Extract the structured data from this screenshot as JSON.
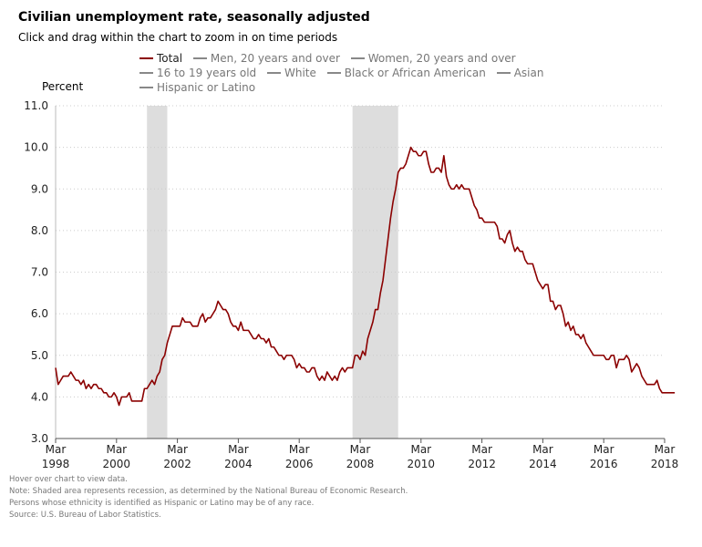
{
  "header": {
    "title": "Civilian unemployment rate, seasonally adjusted",
    "subtitle": "Click and drag within the chart to zoom in on time periods"
  },
  "legend": [
    {
      "label": "Total",
      "active": true
    },
    {
      "label": "Men, 20 years and over",
      "active": false
    },
    {
      "label": "Women, 20 years and over",
      "active": false
    },
    {
      "label": "16 to 19 years old",
      "active": false
    },
    {
      "label": "White",
      "active": false
    },
    {
      "label": "Black or African American",
      "active": false
    },
    {
      "label": "Asian",
      "active": false
    },
    {
      "label": "Hispanic or Latino",
      "active": false
    }
  ],
  "notes": [
    "Hover over chart to view data.",
    "Note: Shaded area represents recession, as determined by the National Bureau of Economic Research.",
    "Persons whose ethnicity is identified as Hispanic or Latino may be of any race.",
    "Source: U.S. Bureau of Labor Statistics."
  ],
  "colors": {
    "line": "#8b0000",
    "recession": "#dddddd",
    "grid": "#cccccc"
  },
  "chart_data": {
    "type": "line",
    "title": "Civilian unemployment rate, seasonally adjusted",
    "ylabel": "Percent",
    "ylim": [
      3.0,
      11.0
    ],
    "y_ticks": [
      "3.0",
      "4.0",
      "5.0",
      "6.0",
      "7.0",
      "8.0",
      "9.0",
      "10.0",
      "11.0"
    ],
    "xlim": [
      "1998-03",
      "2018-03"
    ],
    "x_ticks": [
      {
        "month": "Mar",
        "year": "1998"
      },
      {
        "month": "Mar",
        "year": "2000"
      },
      {
        "month": "Mar",
        "year": "2002"
      },
      {
        "month": "Mar",
        "year": "2004"
      },
      {
        "month": "Mar",
        "year": "2006"
      },
      {
        "month": "Mar",
        "year": "2008"
      },
      {
        "month": "Mar",
        "year": "2010"
      },
      {
        "month": "Mar",
        "year": "2012"
      },
      {
        "month": "Mar",
        "year": "2014"
      },
      {
        "month": "Mar",
        "year": "2016"
      },
      {
        "month": "Mar",
        "year": "2018"
      }
    ],
    "grid": true,
    "legend_position": "top",
    "recessions": [
      {
        "start": "2001-03",
        "end": "2001-11"
      },
      {
        "start": "2007-12",
        "end": "2009-06"
      }
    ],
    "series": [
      {
        "name": "Total",
        "start": "1998-03",
        "values": [
          4.7,
          4.3,
          4.4,
          4.5,
          4.5,
          4.5,
          4.6,
          4.5,
          4.4,
          4.4,
          4.3,
          4.4,
          4.2,
          4.3,
          4.2,
          4.3,
          4.3,
          4.2,
          4.2,
          4.1,
          4.1,
          4.0,
          4.0,
          4.1,
          4.0,
          3.8,
          4.0,
          4.0,
          4.0,
          4.1,
          3.9,
          3.9,
          3.9,
          3.9,
          3.9,
          4.2,
          4.2,
          4.3,
          4.4,
          4.3,
          4.5,
          4.6,
          4.9,
          5.0,
          5.3,
          5.5,
          5.7,
          5.7,
          5.7,
          5.7,
          5.9,
          5.8,
          5.8,
          5.8,
          5.7,
          5.7,
          5.7,
          5.9,
          6.0,
          5.8,
          5.9,
          5.9,
          6.0,
          6.1,
          6.3,
          6.2,
          6.1,
          6.1,
          6.0,
          5.8,
          5.7,
          5.7,
          5.6,
          5.8,
          5.6,
          5.6,
          5.6,
          5.5,
          5.4,
          5.4,
          5.5,
          5.4,
          5.4,
          5.3,
          5.4,
          5.2,
          5.2,
          5.1,
          5.0,
          5.0,
          4.9,
          5.0,
          5.0,
          5.0,
          4.9,
          4.7,
          4.8,
          4.7,
          4.7,
          4.6,
          4.6,
          4.7,
          4.7,
          4.5,
          4.4,
          4.5,
          4.4,
          4.6,
          4.5,
          4.4,
          4.5,
          4.4,
          4.6,
          4.7,
          4.6,
          4.7,
          4.7,
          4.7,
          5.0,
          5.0,
          4.9,
          5.1,
          5.0,
          5.4,
          5.6,
          5.8,
          6.1,
          6.1,
          6.5,
          6.8,
          7.3,
          7.8,
          8.3,
          8.7,
          9.0,
          9.4,
          9.5,
          9.5,
          9.6,
          9.8,
          10.0,
          9.9,
          9.9,
          9.8,
          9.8,
          9.9,
          9.9,
          9.6,
          9.4,
          9.4,
          9.5,
          9.5,
          9.4,
          9.8,
          9.3,
          9.1,
          9.0,
          9.0,
          9.1,
          9.0,
          9.1,
          9.0,
          9.0,
          9.0,
          8.8,
          8.6,
          8.5,
          8.3,
          8.3,
          8.2,
          8.2,
          8.2,
          8.2,
          8.2,
          8.1,
          7.8,
          7.8,
          7.7,
          7.9,
          8.0,
          7.7,
          7.5,
          7.6,
          7.5,
          7.5,
          7.3,
          7.2,
          7.2,
          7.2,
          7.0,
          6.8,
          6.7,
          6.6,
          6.7,
          6.7,
          6.3,
          6.3,
          6.1,
          6.2,
          6.2,
          6.0,
          5.7,
          5.8,
          5.6,
          5.7,
          5.5,
          5.5,
          5.4,
          5.5,
          5.3,
          5.2,
          5.1,
          5.0,
          5.0,
          5.0,
          5.0,
          5.0,
          4.9,
          4.9,
          5.0,
          5.0,
          4.7,
          4.9,
          4.9,
          4.9,
          5.0,
          4.9,
          4.6,
          4.7,
          4.8,
          4.7,
          4.5,
          4.4,
          4.3,
          4.3,
          4.3,
          4.3,
          4.4,
          4.2,
          4.1,
          4.1,
          4.1,
          4.1,
          4.1,
          4.1
        ]
      }
    ]
  }
}
